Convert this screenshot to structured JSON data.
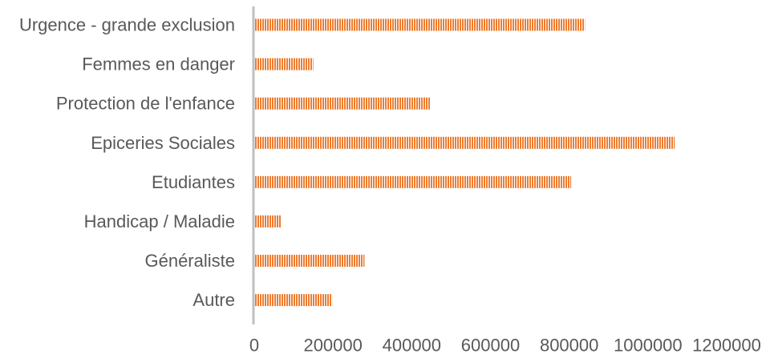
{
  "chart_data": {
    "type": "bar",
    "orientation": "horizontal",
    "categories": [
      "Urgence - grande exclusion",
      "Femmes en danger",
      "Protection de l'enfance",
      "Epiceries Sociales",
      "Etudiantes",
      "Handicap / Maladie",
      "Généraliste",
      "Autre"
    ],
    "series": [
      {
        "values": [
          840000,
          150000,
          447000,
          1068000,
          805000,
          68000,
          280000,
          198000
        ]
      }
    ],
    "x_ticks": [
      "0",
      "200000",
      "400000",
      "600000",
      "800000",
      "1000000",
      "1200000"
    ],
    "xlim": [
      0,
      1200000
    ],
    "bar_color": "#ed7d31",
    "bar_pattern": "vertical-stripes",
    "grid": false,
    "legend": "none"
  }
}
